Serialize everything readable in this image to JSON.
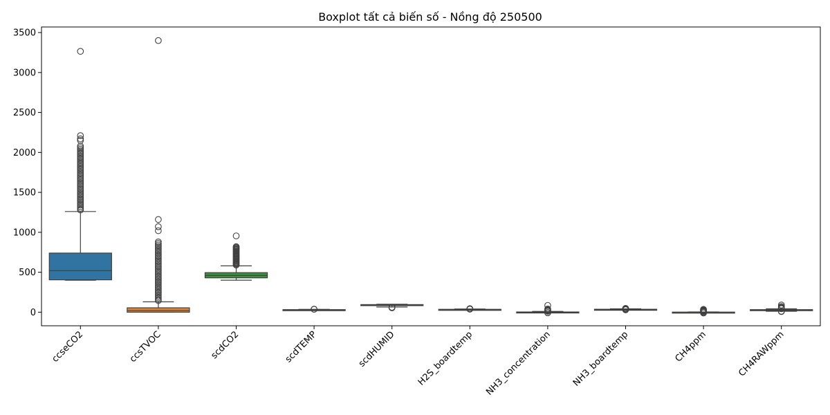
{
  "chart_data": {
    "type": "boxplot",
    "title": "Boxplot tất cả biến số - Nồng độ 250500",
    "xlabel": "",
    "ylabel": "",
    "ylim": [
      -170,
      3570
    ],
    "yticks": [
      0,
      500,
      1000,
      1500,
      2000,
      2500,
      3000,
      3500
    ],
    "grid": false,
    "categories": [
      "ccseCO2",
      "ccsTVOC",
      "scdCO2",
      "scdTEMP",
      "scdHUMID",
      "H2S_boardtemp",
      "NH3_concentration",
      "NH3_boardtemp",
      "CH4ppm",
      "CH4RAWppm"
    ],
    "boxes": [
      {
        "name": "ccseCO2",
        "color": "#3274a1",
        "whislo": 400,
        "q1": 405,
        "med": 520,
        "q3": 740,
        "whishi": 1260,
        "fliers": [
          3265,
          2210,
          2170,
          2150,
          2080,
          2060,
          2040,
          2020,
          2000,
          1980,
          1960,
          1940,
          1920,
          1900,
          1880,
          1860,
          1840,
          1820,
          1800,
          1780,
          1760,
          1740,
          1720,
          1700,
          1680,
          1660,
          1640,
          1620,
          1600,
          1580,
          1560,
          1540,
          1520,
          1500,
          1480,
          1460,
          1440,
          1420,
          1400,
          1380,
          1360,
          1340,
          1320,
          1300,
          1280
        ]
      },
      {
        "name": "ccsTVOC",
        "color": "#e1812c",
        "whislo": 0,
        "q1": 0,
        "med": 20,
        "q3": 55,
        "whishi": 130,
        "fliers": [
          3400,
          1160,
          1070,
          1020,
          880,
          860,
          840,
          820,
          800,
          780,
          760,
          740,
          720,
          700,
          680,
          660,
          640,
          620,
          600,
          580,
          560,
          540,
          520,
          500,
          480,
          460,
          440,
          420,
          400,
          380,
          360,
          340,
          320,
          300,
          280,
          260,
          240,
          220,
          200,
          180,
          160,
          145
        ]
      },
      {
        "name": "scdCO2",
        "color": "#3a923a",
        "whislo": 400,
        "q1": 430,
        "med": 460,
        "q3": 495,
        "whishi": 580,
        "fliers": [
          955,
          820,
          810,
          800,
          790,
          780,
          770,
          760,
          750,
          740,
          730,
          720,
          710,
          700,
          690,
          680,
          670,
          660,
          650,
          640,
          630,
          620,
          610,
          600,
          590
        ]
      },
      {
        "name": "scdTEMP",
        "color": "#c03d3e",
        "whislo": 24,
        "q1": 27,
        "med": 29,
        "q3": 32,
        "whishi": 36,
        "fliers": [
          36,
          38
        ]
      },
      {
        "name": "scdHUMID",
        "color": "#9372b2",
        "whislo": 65,
        "q1": 82,
        "med": 88,
        "q3": 95,
        "whishi": 100,
        "fliers": [
          55,
          58,
          60,
          62
        ]
      },
      {
        "name": "H2S_boardtemp",
        "color": "#845b53",
        "whislo": 26,
        "q1": 30,
        "med": 33,
        "q3": 36,
        "whishi": 40,
        "fliers": [
          38,
          40,
          42,
          44
        ]
      },
      {
        "name": "NH3_concentration",
        "color": "#d684bd",
        "whislo": -5,
        "q1": -2,
        "med": 0,
        "q3": 3,
        "whishi": 10,
        "fliers": [
          85,
          40,
          30,
          25,
          20,
          15,
          12,
          -5,
          -8
        ]
      },
      {
        "name": "NH3_boardtemp",
        "color": "#7f7f7f",
        "whislo": 26,
        "q1": 31,
        "med": 34,
        "q3": 37,
        "whishi": 42,
        "fliers": [
          30,
          33,
          36,
          39,
          42,
          45,
          48
        ]
      },
      {
        "name": "CH4ppm",
        "color": "#a9aa35",
        "whislo": -5,
        "q1": -3,
        "med": -1,
        "q3": 1,
        "whishi": 3,
        "fliers": [
          35,
          28,
          22,
          16,
          10,
          5,
          -6,
          -10
        ]
      },
      {
        "name": "CH4RAWppm",
        "color": "#2ed0de",
        "whislo": 12,
        "q1": 20,
        "med": 26,
        "q3": 32,
        "whishi": 42,
        "fliers": [
          90,
          70,
          60,
          52,
          46,
          44,
          12,
          8
        ]
      }
    ]
  }
}
